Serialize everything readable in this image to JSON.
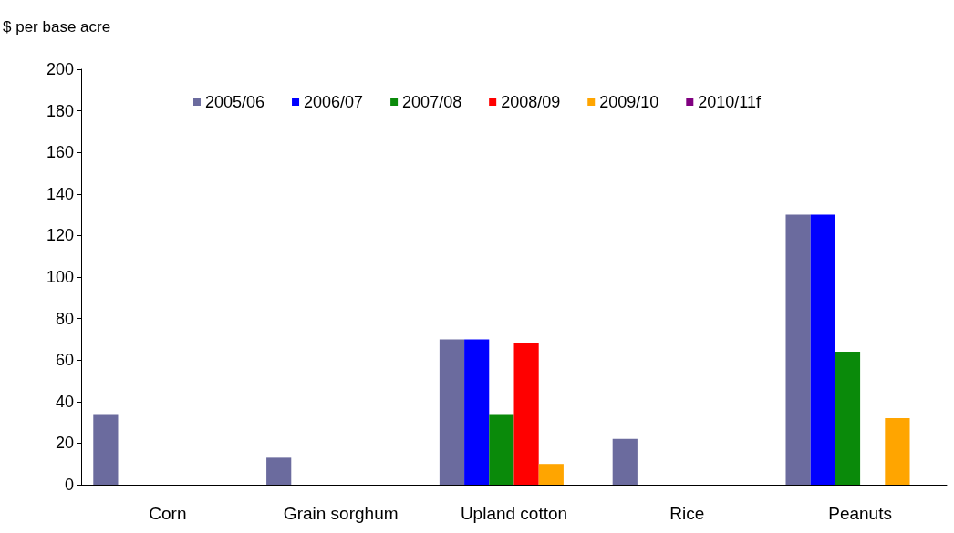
{
  "chart_data": {
    "type": "bar",
    "ylabel": "$ per base acre",
    "categories": [
      "Corn",
      "Grain sorghum",
      "Upland cotton",
      "Rice",
      "Peanuts"
    ],
    "series": [
      {
        "name": "2005/06",
        "color": "#6b6b9e",
        "values": [
          34,
          13,
          70,
          22,
          130
        ]
      },
      {
        "name": "2006/07",
        "color": "#0000ff",
        "values": [
          0,
          0,
          70,
          0,
          130
        ]
      },
      {
        "name": "2007/08",
        "color": "#0a8a0a",
        "values": [
          0,
          0,
          34,
          0,
          64
        ]
      },
      {
        "name": "2008/09",
        "color": "#ff0000",
        "values": [
          0,
          0,
          68,
          0,
          0
        ]
      },
      {
        "name": "2009/10",
        "color": "#ffa500",
        "values": [
          0,
          0,
          10,
          0,
          32
        ]
      },
      {
        "name": "2010/11f",
        "color": "#800080",
        "values": [
          0,
          0,
          0,
          0,
          0
        ]
      }
    ],
    "ylim": [
      0,
      200
    ],
    "yticks": [
      0,
      20,
      40,
      60,
      80,
      100,
      120,
      140,
      160,
      180,
      200
    ],
    "grid": false,
    "legend": "top"
  }
}
